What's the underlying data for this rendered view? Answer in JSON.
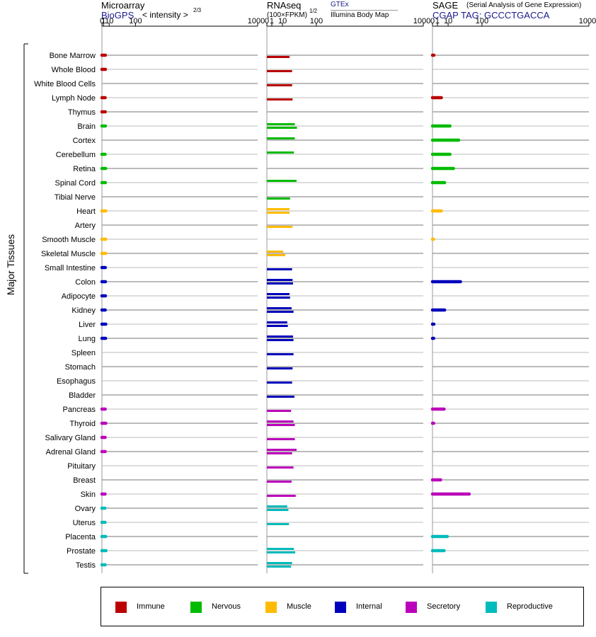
{
  "side_label": "Major Tissues",
  "colors": {
    "Immune": "#bb0000",
    "Nervous": "#00bb00",
    "Muscle": "#ffbb00",
    "Internal": "#0000bb",
    "Secretory": "#bb00bb",
    "Reproductive": "#00bbbb"
  },
  "panels": {
    "microarray": {
      "title": "Microarray",
      "source": "BioGPS",
      "scale_label": "< intensity >",
      "exponent": "2/3",
      "ticks": [
        "0",
        "1",
        "10",
        "100",
        "1000"
      ]
    },
    "rnaseq": {
      "title": "RNAseq",
      "scale_label": "(100×FPKM)",
      "exponent": "1/2",
      "legend_a": "GTEx",
      "legend_b": "Illumina Body Map",
      "ticks": [
        "0",
        "1",
        "10",
        "100",
        "1000"
      ]
    },
    "sage": {
      "title": "SAGE",
      "subtitle": "(Serial Analysis of Gene Expression)",
      "tag": "CGAP TAG: GCCCTGACCA",
      "ticks": [
        "0",
        "1",
        "10",
        "100",
        "1000"
      ]
    }
  },
  "legend": [
    {
      "label": "Immune",
      "color": "#bb0000"
    },
    {
      "label": "Nervous",
      "color": "#00bb00"
    },
    {
      "label": "Muscle",
      "color": "#ffbb00"
    },
    {
      "label": "Internal",
      "color": "#0000bb"
    },
    {
      "label": "Secretory",
      "color": "#bb00bb"
    },
    {
      "label": "Reproductive",
      "color": "#00bbbb"
    }
  ],
  "chart_data": {
    "type": "bar",
    "orientation": "horizontal",
    "axis_ticks": [
      0,
      1,
      10,
      100,
      1000
    ],
    "axis_scale": "nonlinear (0 to 1000)",
    "grid": true,
    "categories": [
      "Bone Marrow",
      "Whole Blood",
      "White Blood Cells",
      "Lymph Node",
      "Thymus",
      "Brain",
      "Cortex",
      "Cerebellum",
      "Retina",
      "Spinal Cord",
      "Tibial Nerve",
      "Heart",
      "Artery",
      "Smooth Muscle",
      "Skeletal Muscle",
      "Small Intestine",
      "Colon",
      "Adipocyte",
      "Kidney",
      "Liver",
      "Lung",
      "Spleen",
      "Stomach",
      "Esophagus",
      "Bladder",
      "Pancreas",
      "Thyroid",
      "Salivary Gland",
      "Adrenal Gland",
      "Pituitary",
      "Breast",
      "Skin",
      "Ovary",
      "Uterus",
      "Placenta",
      "Prostate",
      "Testis"
    ],
    "groups": [
      "Immune",
      "Immune",
      "Immune",
      "Immune",
      "Immune",
      "Nervous",
      "Nervous",
      "Nervous",
      "Nervous",
      "Nervous",
      "Nervous",
      "Muscle",
      "Muscle",
      "Muscle",
      "Muscle",
      "Internal",
      "Internal",
      "Internal",
      "Internal",
      "Internal",
      "Internal",
      "Internal",
      "Internal",
      "Internal",
      "Internal",
      "Secretory",
      "Secretory",
      "Secretory",
      "Secretory",
      "Secretory",
      "Secretory",
      "Secretory",
      "Reproductive",
      "Reproductive",
      "Reproductive",
      "Reproductive",
      "Reproductive"
    ],
    "series": [
      {
        "name": "Microarray",
        "values": [
          3.3,
          3.4,
          null,
          3.0,
          3.1,
          3.4,
          null,
          2.9,
          3.6,
          3.3,
          null,
          3.8,
          null,
          3.7,
          3.7,
          3.2,
          3.4,
          3.4,
          3.1,
          3.9,
          3.6,
          null,
          null,
          null,
          null,
          3.1,
          3.9,
          3.0,
          3.0,
          null,
          null,
          2.9,
          2.7,
          2.8,
          3.7,
          4.2,
          3.0
        ]
      },
      {
        "name": "GTEx",
        "values": [
          null,
          null,
          null,
          null,
          null,
          32,
          32,
          30,
          null,
          36,
          null,
          21,
          null,
          null,
          11,
          null,
          27,
          21,
          25,
          17,
          28,
          null,
          null,
          null,
          null,
          null,
          29,
          null,
          36,
          null,
          null,
          null,
          17,
          null,
          null,
          30,
          26
        ]
      },
      {
        "name": "Illumina Body Map",
        "values": [
          21,
          26,
          26,
          27,
          null,
          37,
          null,
          null,
          null,
          null,
          22,
          21,
          27,
          null,
          14,
          26,
          28,
          22,
          29,
          18,
          29,
          29,
          27,
          26,
          31,
          24,
          32,
          32,
          26,
          29,
          25,
          34,
          19,
          20,
          null,
          33,
          24
        ]
      },
      {
        "name": "SAGE",
        "values": [
          0.08,
          null,
          null,
          3.2,
          null,
          12.5,
          28,
          12.5,
          18,
          6,
          null,
          3.2,
          null,
          0.02,
          null,
          null,
          32,
          null,
          6,
          0.08,
          0.06,
          null,
          null,
          null,
          null,
          5.5,
          0.06,
          null,
          null,
          null,
          2.7,
          55,
          null,
          null,
          9,
          5.5,
          null
        ]
      }
    ]
  }
}
